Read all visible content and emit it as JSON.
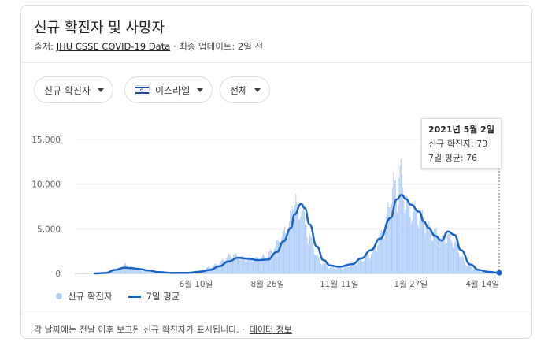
{
  "card": {
    "title": "신규 확진자 및 사망자",
    "source_prefix": "출처:",
    "source_link": "JHU CSSE COVID-19 Data",
    "source_suffix": "· 최종 업데이트: 2일 전"
  },
  "filters": {
    "metric": "신규 확진자",
    "country": "이스라엘",
    "range": "전체"
  },
  "tooltip": {
    "date": "2021년 5월 2일",
    "cases_line": "신규 확진자: 73",
    "avg_line": "7일 평균: 76"
  },
  "legend": {
    "cases": "신규 확진자",
    "avg": "7일 평균"
  },
  "footer": {
    "note": "각 날짜에는 전날 이후 보고된 신규 확진자가 표시됩니다. ·",
    "link": "데이터 정보"
  },
  "colors": {
    "bar": "#aecbfa",
    "line": "#1a63c6",
    "grid": "#e8eaed",
    "text": "#3c4043"
  },
  "chart_data": {
    "type": "bar",
    "title": "",
    "xlabel": "",
    "ylabel": "",
    "ylim": [
      0,
      15000
    ],
    "yticks": [
      0,
      5000,
      10000,
      15000
    ],
    "ytick_labels": [
      "0",
      "5,000",
      "10,000",
      "15,000"
    ],
    "x_range": [
      "2020-02-21",
      "2021-05-02"
    ],
    "xticks": [
      {
        "date": "2020-06-10",
        "label": "6월 10일"
      },
      {
        "date": "2020-08-26",
        "label": "8월 26일"
      },
      {
        "date": "2020-11-11",
        "label": "11월 11일"
      },
      {
        "date": "2021-01-27",
        "label": "1월 27일"
      },
      {
        "date": "2021-04-14",
        "label": "4월 14일"
      }
    ],
    "series": [
      {
        "name": "신규 확진자",
        "type": "bar",
        "dates": [
          "2020-02-21",
          "2020-03-01",
          "2020-03-10",
          "2020-03-20",
          "2020-03-25",
          "2020-04-01",
          "2020-04-05",
          "2020-04-10",
          "2020-04-20",
          "2020-05-01",
          "2020-05-15",
          "2020-06-01",
          "2020-06-10",
          "2020-06-20",
          "2020-06-30",
          "2020-07-05",
          "2020-07-10",
          "2020-07-15",
          "2020-07-20",
          "2020-07-25",
          "2020-08-01",
          "2020-08-10",
          "2020-08-20",
          "2020-08-26",
          "2020-09-01",
          "2020-09-06",
          "2020-09-10",
          "2020-09-15",
          "2020-09-20",
          "2020-09-24",
          "2020-09-28",
          "2020-10-01",
          "2020-10-05",
          "2020-10-10",
          "2020-10-15",
          "2020-10-20",
          "2020-10-30",
          "2020-11-11",
          "2020-11-20",
          "2020-12-01",
          "2020-12-10",
          "2020-12-15",
          "2020-12-20",
          "2020-12-25",
          "2020-12-30",
          "2021-01-04",
          "2021-01-08",
          "2021-01-12",
          "2021-01-15",
          "2021-01-18",
          "2021-01-21",
          "2021-01-24",
          "2021-01-27",
          "2021-02-01",
          "2021-02-05",
          "2021-02-10",
          "2021-02-15",
          "2021-02-20",
          "2021-02-25",
          "2021-03-01",
          "2021-03-05",
          "2021-03-10",
          "2021-03-15",
          "2021-03-20",
          "2021-03-25",
          "2021-04-01",
          "2021-04-10",
          "2021-04-14",
          "2021-04-25",
          "2021-05-02"
        ],
        "values": [
          0,
          5,
          150,
          600,
          950,
          700,
          500,
          300,
          200,
          80,
          50,
          100,
          250,
          500,
          900,
          1100,
          1500,
          1900,
          1950,
          1800,
          1600,
          1500,
          1700,
          1950,
          2600,
          3300,
          3900,
          4600,
          5900,
          8900,
          5200,
          7900,
          4900,
          3900,
          2500,
          1400,
          700,
          550,
          750,
          1200,
          1700,
          2200,
          2900,
          3900,
          5300,
          7500,
          9400,
          8100,
          11000,
          9000,
          7900,
          7000,
          6600,
          6500,
          6200,
          5600,
          4900,
          4500,
          4000,
          3500,
          4200,
          3800,
          3200,
          2300,
          1200,
          700,
          300,
          160,
          90,
          73
        ]
      },
      {
        "name": "7일 평균",
        "type": "line",
        "dates": [
          "2020-02-21",
          "2020-03-05",
          "2020-03-15",
          "2020-03-25",
          "2020-04-01",
          "2020-04-10",
          "2020-04-20",
          "2020-05-01",
          "2020-05-15",
          "2020-06-01",
          "2020-06-15",
          "2020-06-25",
          "2020-07-05",
          "2020-07-15",
          "2020-07-25",
          "2020-08-05",
          "2020-08-15",
          "2020-08-26",
          "2020-09-05",
          "2020-09-12",
          "2020-09-20",
          "2020-09-24",
          "2020-10-01",
          "2020-10-05",
          "2020-10-10",
          "2020-10-18",
          "2020-10-25",
          "2020-11-01",
          "2020-11-11",
          "2020-11-25",
          "2020-12-05",
          "2020-12-15",
          "2020-12-25",
          "2021-01-05",
          "2021-01-12",
          "2021-01-17",
          "2021-01-22",
          "2021-01-27",
          "2021-02-05",
          "2021-02-10",
          "2021-02-15",
          "2021-02-22",
          "2021-03-01",
          "2021-03-08",
          "2021-03-15",
          "2021-03-22",
          "2021-04-01",
          "2021-04-10",
          "2021-04-20",
          "2021-05-02"
        ],
        "values": [
          0,
          50,
          400,
          650,
          600,
          500,
          330,
          150,
          60,
          70,
          200,
          400,
          800,
          1350,
          1750,
          1650,
          1500,
          1550,
          2400,
          3600,
          5100,
          6600,
          7800,
          7300,
          5500,
          3000,
          1500,
          900,
          750,
          1050,
          1700,
          2600,
          3900,
          6200,
          8300,
          8800,
          8300,
          7700,
          6900,
          5800,
          5100,
          4200,
          3700,
          4700,
          4300,
          2600,
          1000,
          400,
          180,
          76
        ]
      }
    ]
  }
}
